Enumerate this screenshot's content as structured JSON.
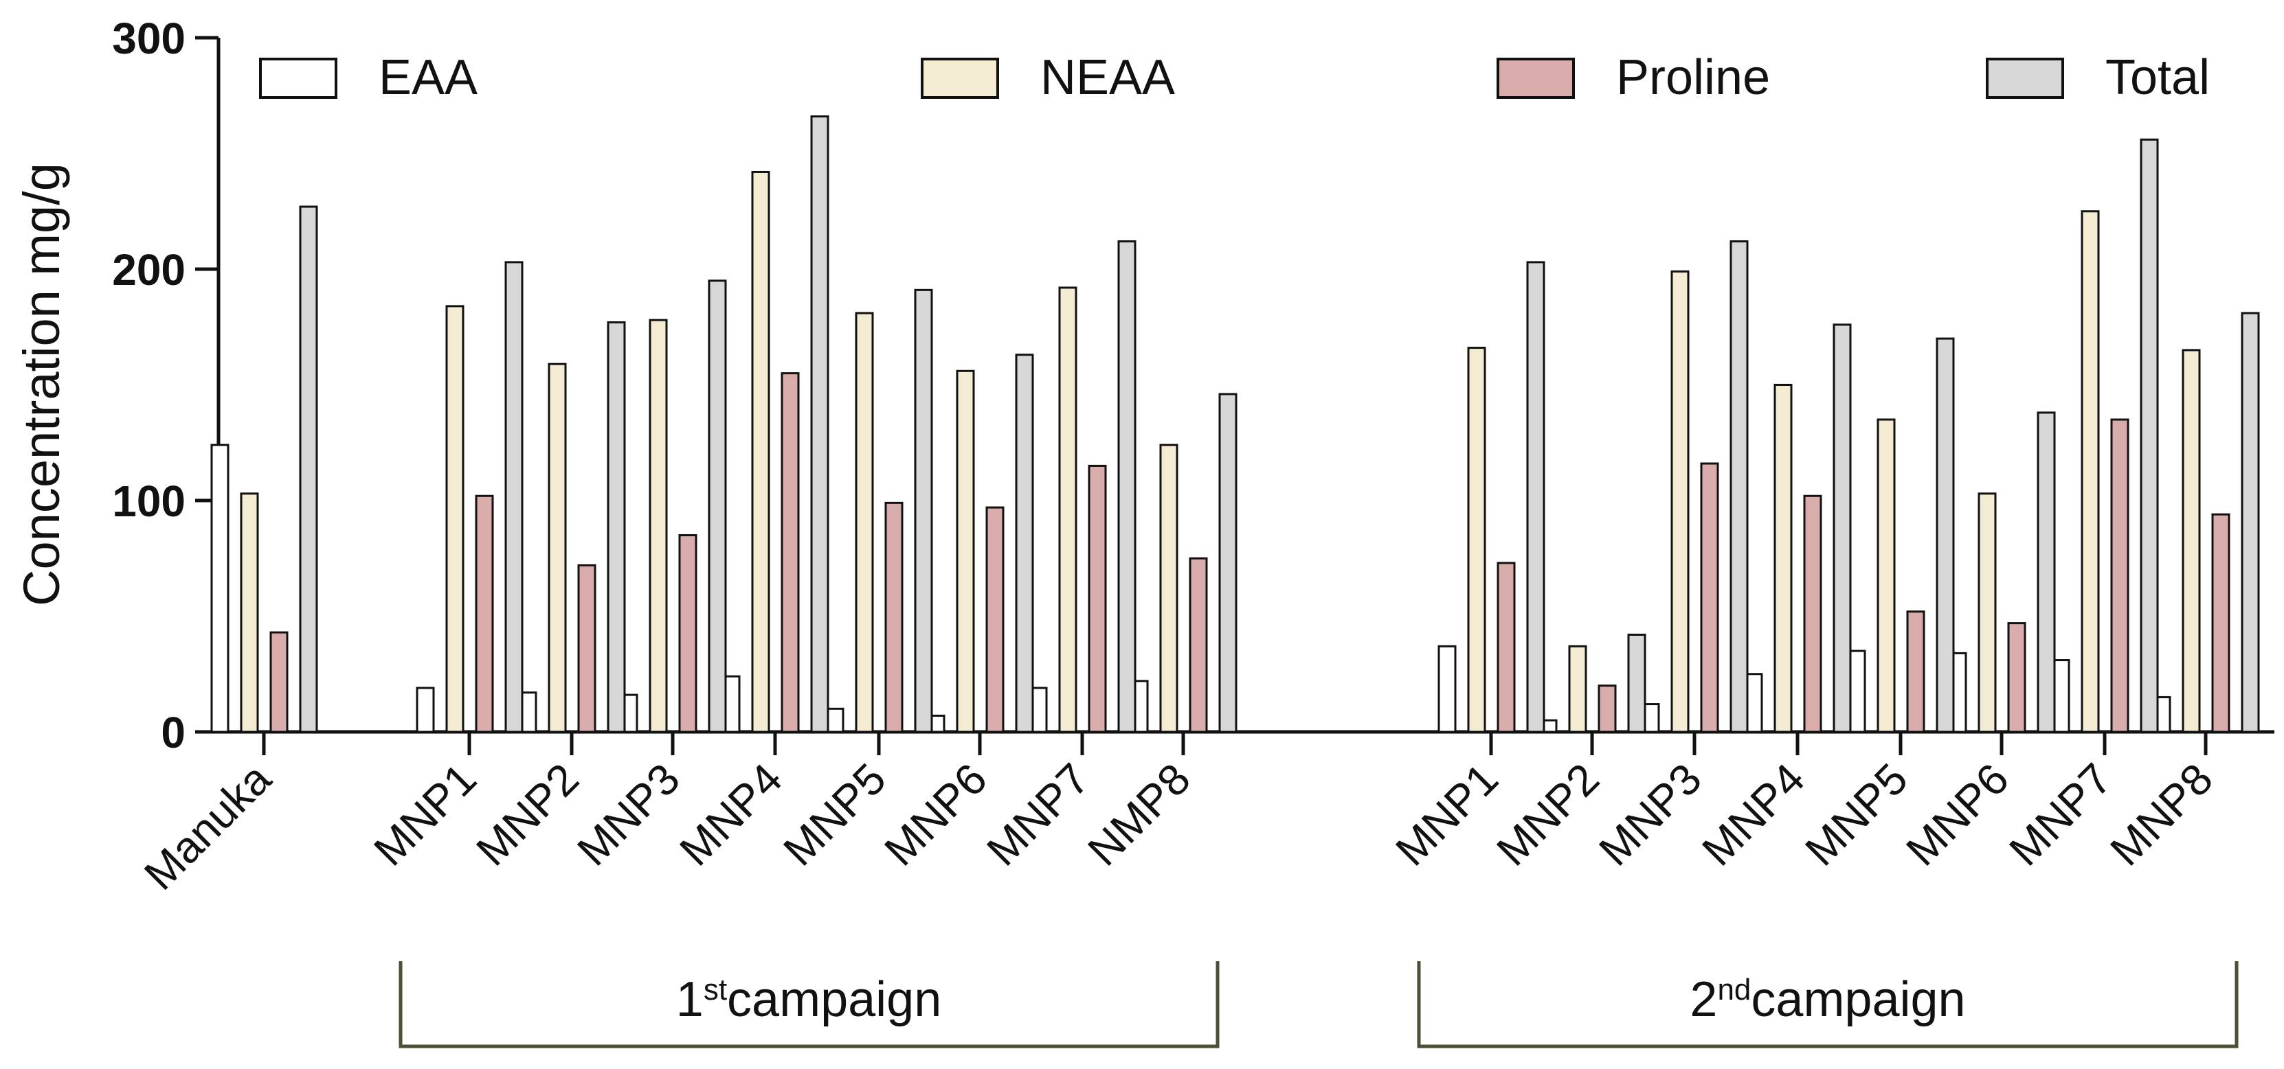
{
  "chart_data": {
    "type": "bar",
    "title": "",
    "xlabel": "",
    "ylabel": "Concentration mg/g",
    "ylim": [
      0,
      300
    ],
    "yticks": [
      0,
      100,
      200,
      300
    ],
    "grid": false,
    "legend_position": "top",
    "colors": {
      "EAA": "#ffffff",
      "NEAA": "#f3ecd2",
      "Proline": "#d9acac",
      "Total": "#d7d7d7",
      "stroke": "#111111",
      "bracket": "#4e4f35"
    },
    "categories": [
      "Manuka",
      "MNP1",
      "MNP2",
      "MNP3",
      "MNP4",
      "MNP5",
      "MNP6",
      "MNP7",
      "NMP8",
      "MNP1",
      "MNP2",
      "MNP3",
      "MNP4",
      "MNP5",
      "MNP6",
      "MNP7",
      "MNP8"
    ],
    "series": [
      {
        "name": "EAA",
        "values": [
          124,
          19,
          17,
          16,
          24,
          10,
          7,
          19,
          22,
          37,
          5,
          12,
          25,
          35,
          34,
          31,
          15
        ]
      },
      {
        "name": "NEAA",
        "values": [
          103,
          184,
          159,
          178,
          242,
          181,
          156,
          192,
          124,
          166,
          37,
          199,
          150,
          135,
          103,
          225,
          165
        ]
      },
      {
        "name": "Proline",
        "values": [
          43,
          102,
          72,
          85,
          155,
          99,
          97,
          115,
          75,
          73,
          20,
          116,
          102,
          52,
          47,
          135,
          94
        ]
      },
      {
        "name": "Total",
        "values": [
          227,
          203,
          177,
          195,
          266,
          191,
          163,
          212,
          146,
          203,
          42,
          212,
          176,
          170,
          138,
          256,
          181
        ]
      }
    ],
    "groups": [
      {
        "label_number": "",
        "label_suffix": "",
        "label_text": ""
      },
      {
        "label_number": "1",
        "label_suffix": "st",
        "label_text": "campaign"
      },
      {
        "label_number": "2",
        "label_suffix": "nd",
        "label_text": "campaign"
      }
    ]
  }
}
